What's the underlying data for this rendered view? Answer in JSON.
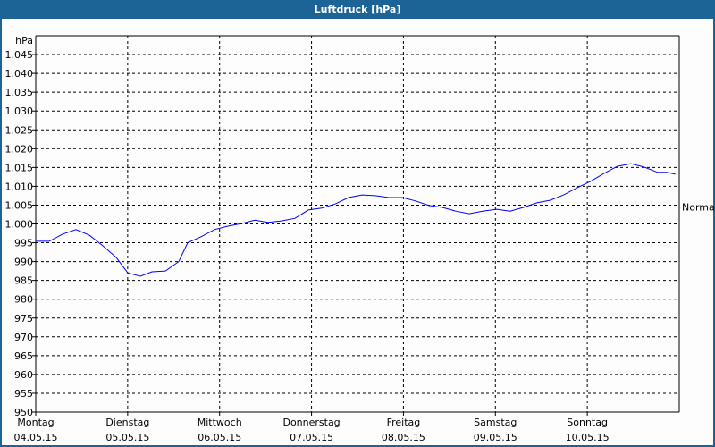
{
  "window": {
    "title": "Luftdruck [hPa]"
  },
  "chart_data": {
    "type": "line",
    "title": "Luftdruck [hPa]",
    "ylabel": "hPa",
    "ylim": [
      950,
      1050
    ],
    "yticks": [
      950,
      955,
      960,
      965,
      970,
      975,
      980,
      985,
      990,
      995,
      1000,
      1005,
      1010,
      1015,
      1020,
      1025,
      1030,
      1035,
      1040,
      1045
    ],
    "ytick_labels": [
      "950",
      "955",
      "960",
      "965",
      "970",
      "975",
      "980",
      "985",
      "990",
      "995",
      "1.000",
      "1.005",
      "1.010",
      "1.015",
      "1.020",
      "1.025",
      "1.030",
      "1.035",
      "1.040",
      "1.045"
    ],
    "xlim": [
      "2015-05-04 00:00",
      "2015-05-11 00:00"
    ],
    "xticks": [
      {
        "day": "Montag",
        "date": "04.05.15"
      },
      {
        "day": "Dienstag",
        "date": "05.05.15"
      },
      {
        "day": "Mittwoch",
        "date": "06.05.15"
      },
      {
        "day": "Donnerstag",
        "date": "07.05.15"
      },
      {
        "day": "Freitag",
        "date": "08.05.15"
      },
      {
        "day": "Samstag",
        "date": "09.05.15"
      },
      {
        "day": "Sonntag",
        "date": "10.05.15"
      }
    ],
    "grid": true,
    "line_color": "#0000ff",
    "reference": {
      "label": "Normal",
      "value": 1004.5
    },
    "series": [
      {
        "points": [
          [
            "2015-05-04 00:00",
            995.4
          ],
          [
            "2015-05-04 03:30",
            995.4
          ],
          [
            "2015-05-04 07:00",
            997.3
          ],
          [
            "2015-05-04 10:30",
            998.5
          ],
          [
            "2015-05-04 14:00",
            997.0
          ],
          [
            "2015-05-04 17:30",
            994.2
          ],
          [
            "2015-05-04 21:00",
            991.1
          ],
          [
            "2015-05-05 00:00",
            987.0
          ],
          [
            "2015-05-05 03:20",
            986.1
          ],
          [
            "2015-05-05 06:20",
            987.3
          ],
          [
            "2015-05-05 09:50",
            987.5
          ],
          [
            "2015-05-05 13:20",
            990.0
          ],
          [
            "2015-05-05 15:40",
            995.0
          ],
          [
            "2015-05-05 19:10",
            996.6
          ],
          [
            "2015-05-05 22:40",
            998.5
          ],
          [
            "2015-05-06 02:10",
            999.4
          ],
          [
            "2015-05-06 05:40",
            1000.1
          ],
          [
            "2015-05-06 09:10",
            1001.0
          ],
          [
            "2015-05-06 12:40",
            1000.4
          ],
          [
            "2015-05-06 16:10",
            1000.8
          ],
          [
            "2015-05-06 19:40",
            1001.5
          ],
          [
            "2015-05-06 23:10",
            1003.7
          ],
          [
            "2015-05-07 02:40",
            1004.2
          ],
          [
            "2015-05-07 06:10",
            1005.3
          ],
          [
            "2015-05-07 09:40",
            1007.0
          ],
          [
            "2015-05-07 13:10",
            1007.7
          ],
          [
            "2015-05-07 16:40",
            1007.5
          ],
          [
            "2015-05-07 20:10",
            1007.0
          ],
          [
            "2015-05-07 23:40",
            1007.0
          ],
          [
            "2015-05-08 03:10",
            1006.1
          ],
          [
            "2015-05-08 06:40",
            1004.9
          ],
          [
            "2015-05-08 10:10",
            1004.4
          ],
          [
            "2015-05-08 13:40",
            1003.4
          ],
          [
            "2015-05-08 17:10",
            1002.7
          ],
          [
            "2015-05-08 20:40",
            1003.4
          ],
          [
            "2015-05-09 00:20",
            1003.9
          ],
          [
            "2015-05-09 03:50",
            1003.4
          ],
          [
            "2015-05-09 07:20",
            1004.4
          ],
          [
            "2015-05-09 10:50",
            1005.6
          ],
          [
            "2015-05-09 14:20",
            1006.3
          ],
          [
            "2015-05-09 17:50",
            1007.7
          ],
          [
            "2015-05-09 21:20",
            1009.6
          ],
          [
            "2015-05-10 00:50",
            1011.3
          ],
          [
            "2015-05-10 04:20",
            1013.4
          ],
          [
            "2015-05-10 07:50",
            1015.3
          ],
          [
            "2015-05-10 11:20",
            1016.0
          ],
          [
            "2015-05-10 14:50",
            1015.1
          ],
          [
            "2015-05-10 18:20",
            1013.7
          ],
          [
            "2015-05-10 20:40",
            1013.7
          ],
          [
            "2015-05-10 23:00",
            1013.2
          ]
        ]
      }
    ]
  }
}
